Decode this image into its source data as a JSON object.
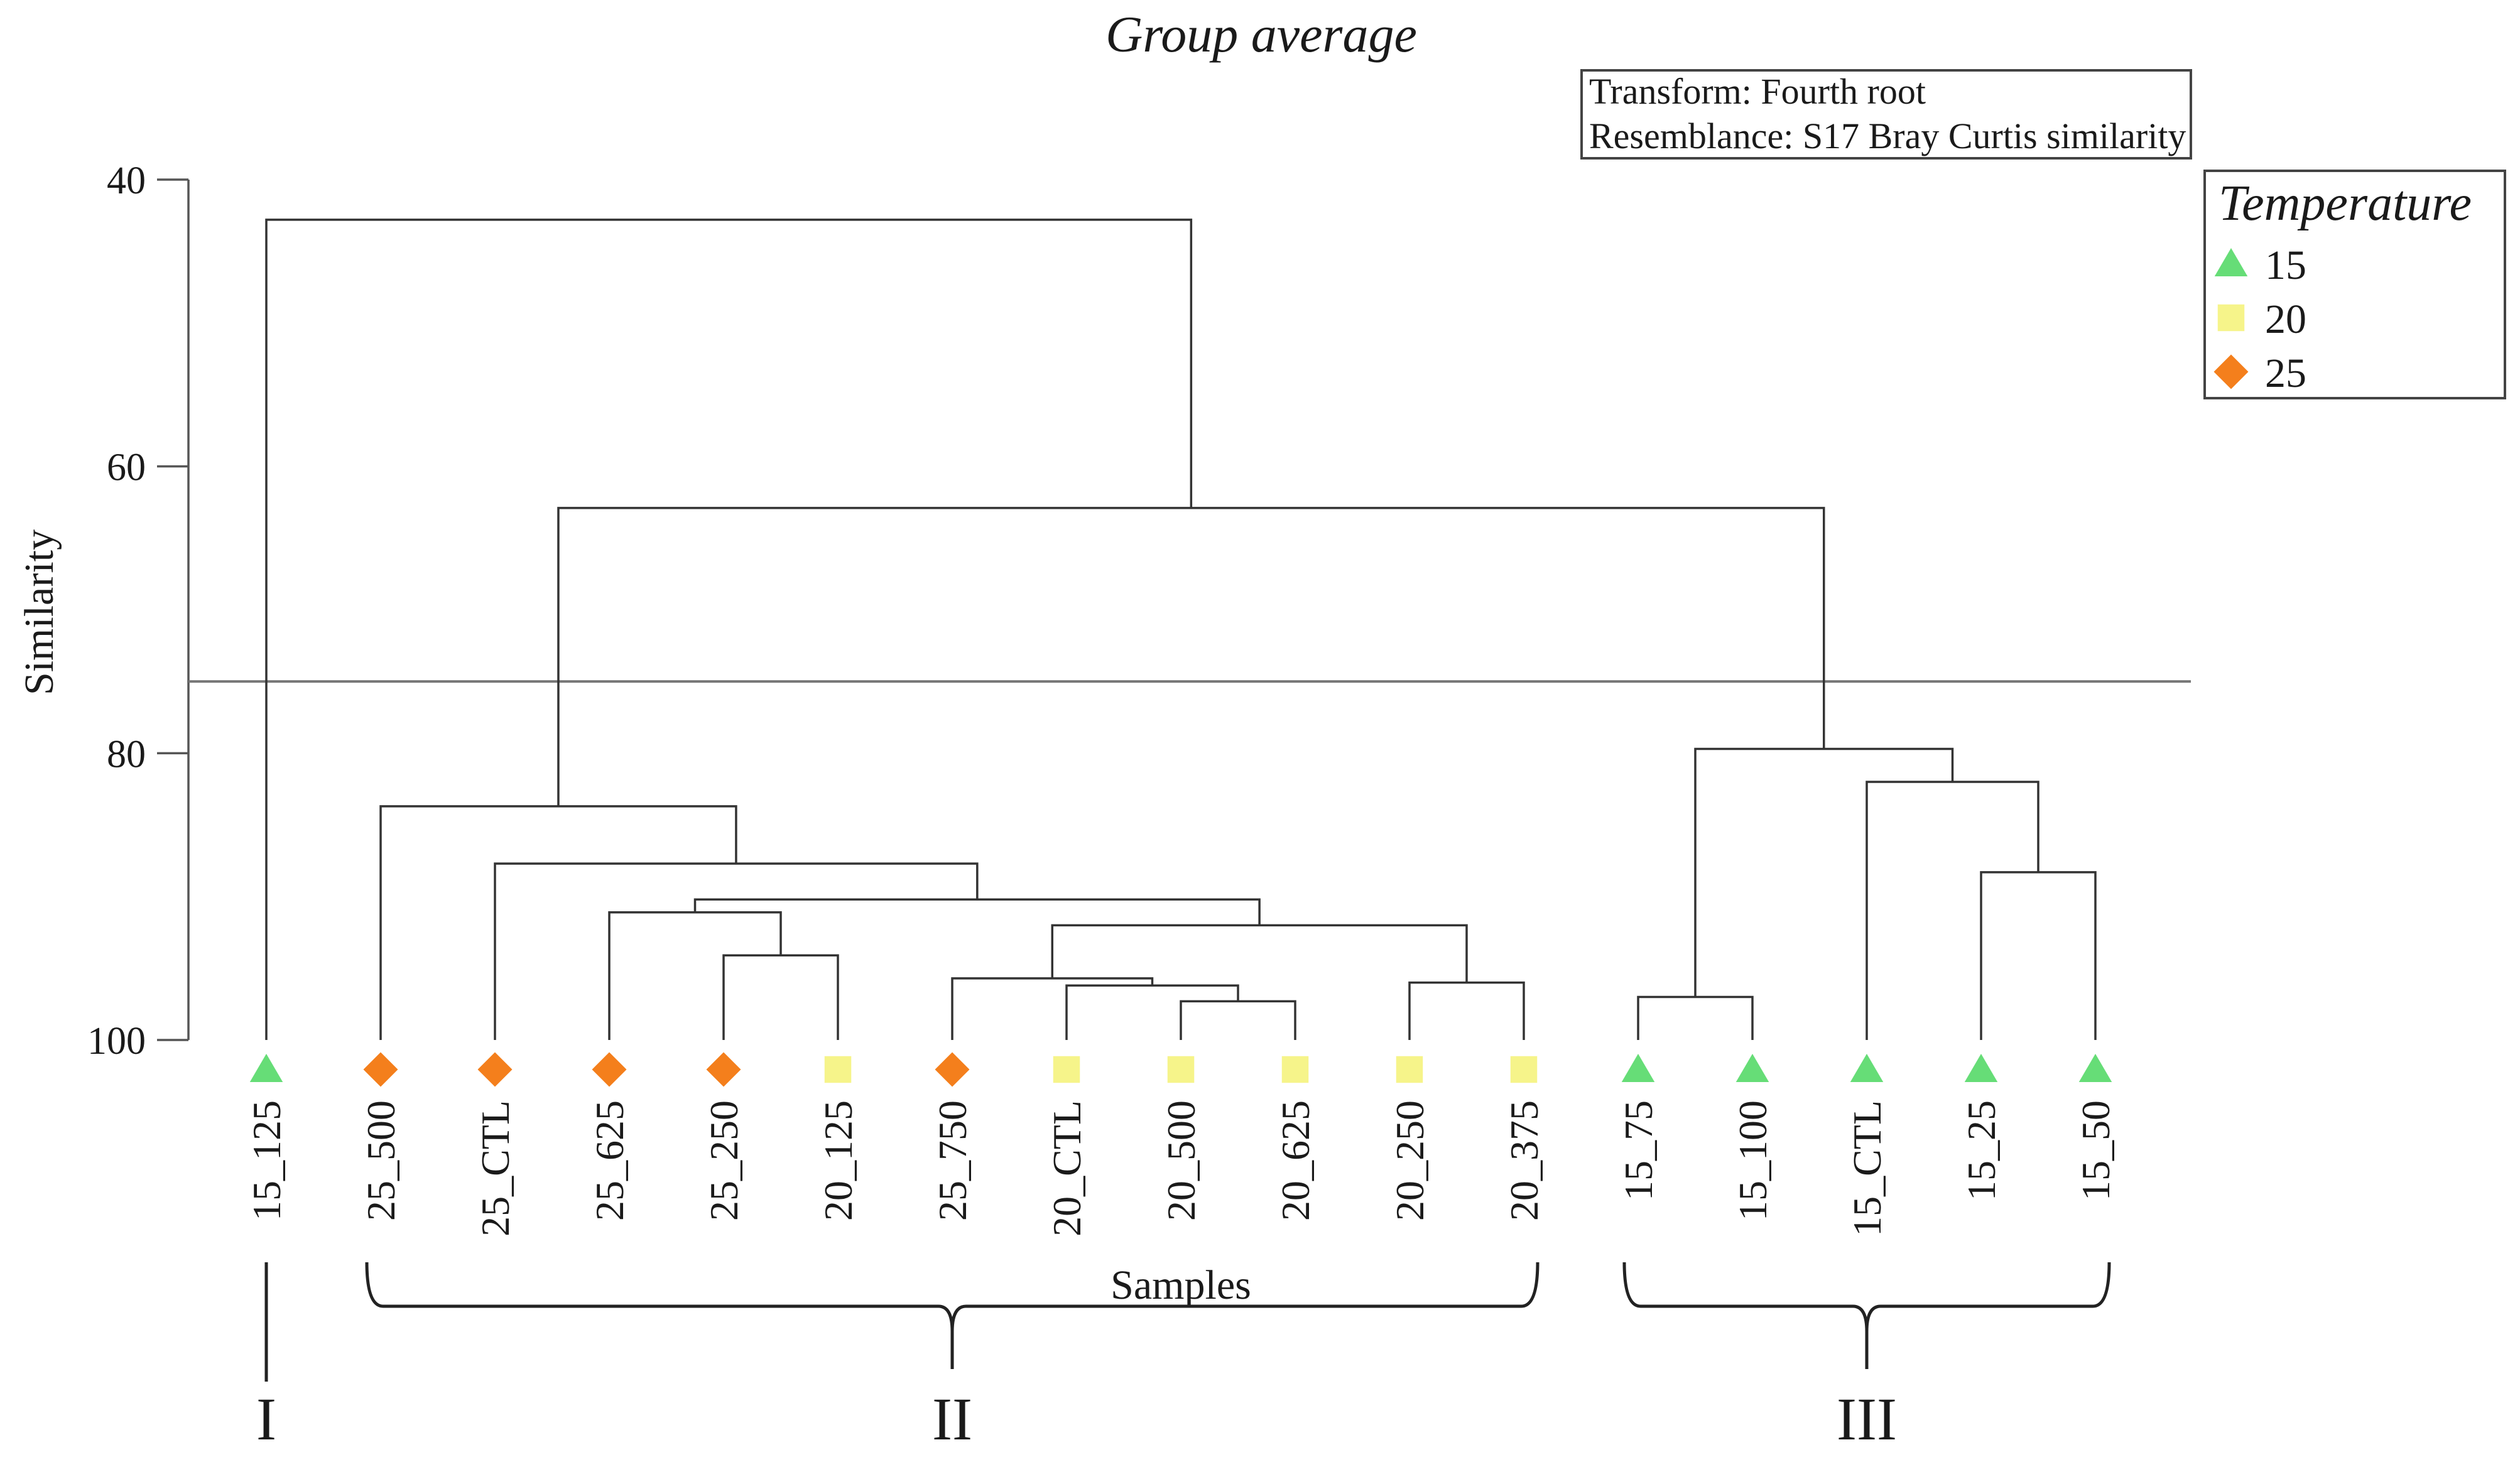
{
  "chart_data": {
    "type": "dendrogram",
    "title": "Group average",
    "method": "Group average",
    "ylabel": "Similarity",
    "xlabel": "Samples",
    "ylim": [
      40,
      100
    ],
    "yticks": [
      40,
      60,
      80,
      100
    ],
    "ytick_labels": [
      "40",
      "60",
      "80",
      "100"
    ],
    "cut_similarity": 75,
    "info_box": {
      "transform": "Transform: Fourth root",
      "resemblance": "Resemblance: S17 Bray Curtis similarity"
    },
    "legend": {
      "title": "Temperature",
      "entries": [
        {
          "label": "15",
          "shape": "triangle",
          "color": "#66dd77"
        },
        {
          "label": "20",
          "shape": "square",
          "color": "#f6f48a"
        },
        {
          "label": "25",
          "shape": "diamond",
          "color": "#f47f1c"
        }
      ]
    },
    "leaves": [
      {
        "label": "15_125",
        "temperature": "15"
      },
      {
        "label": "25_500",
        "temperature": "25"
      },
      {
        "label": "25_CTL",
        "temperature": "25"
      },
      {
        "label": "25_625",
        "temperature": "25"
      },
      {
        "label": "25_250",
        "temperature": "25"
      },
      {
        "label": "20_125",
        "temperature": "20"
      },
      {
        "label": "25_750",
        "temperature": "25"
      },
      {
        "label": "20_CTL",
        "temperature": "20"
      },
      {
        "label": "20_500",
        "temperature": "20"
      },
      {
        "label": "20_625",
        "temperature": "20"
      },
      {
        "label": "20_250",
        "temperature": "20"
      },
      {
        "label": "20_375",
        "temperature": "20"
      },
      {
        "label": "15_75",
        "temperature": "15"
      },
      {
        "label": "15_100",
        "temperature": "15"
      },
      {
        "label": "15_CTL",
        "temperature": "15"
      },
      {
        "label": "15_25",
        "temperature": "15"
      },
      {
        "label": "15_50",
        "temperature": "15"
      }
    ],
    "merges": [
      {
        "id": "m1",
        "left": "L4",
        "right": "L5",
        "similarity": 94.1
      },
      {
        "id": "m2",
        "left": "L3",
        "right": "m1",
        "similarity": 91.1
      },
      {
        "id": "m3",
        "left": "L8",
        "right": "L9",
        "similarity": 97.3
      },
      {
        "id": "m4",
        "left": "L7",
        "right": "m3",
        "similarity": 96.2
      },
      {
        "id": "m5",
        "left": "L6",
        "right": "m4",
        "similarity": 95.7
      },
      {
        "id": "m6",
        "left": "L10",
        "right": "L11",
        "similarity": 96.0
      },
      {
        "id": "m7",
        "left": "m5",
        "right": "m6",
        "similarity": 92.0
      },
      {
        "id": "m8",
        "left": "m2",
        "right": "m7",
        "similarity": 90.2
      },
      {
        "id": "m9",
        "left": "L2",
        "right": "m8",
        "similarity": 87.7
      },
      {
        "id": "m10",
        "left": "L1",
        "right": "m9",
        "similarity": 83.7
      },
      {
        "id": "m11",
        "left": "L12",
        "right": "L13",
        "similarity": 97.0
      },
      {
        "id": "m12",
        "left": "L15",
        "right": "L16",
        "similarity": 88.3
      },
      {
        "id": "m13",
        "left": "L14",
        "right": "m12",
        "similarity": 82.0
      },
      {
        "id": "m14",
        "left": "m11",
        "right": "m13",
        "similarity": 79.7
      },
      {
        "id": "m15",
        "left": "m10",
        "right": "m14",
        "similarity": 62.9
      },
      {
        "id": "m16",
        "left": "L0",
        "right": "m15",
        "similarity": 42.8
      }
    ],
    "groups": [
      {
        "label": "I",
        "first_leaf": 0,
        "last_leaf": 0
      },
      {
        "label": "II",
        "first_leaf": 1,
        "last_leaf": 11
      },
      {
        "label": "III",
        "first_leaf": 12,
        "last_leaf": 16
      }
    ]
  }
}
